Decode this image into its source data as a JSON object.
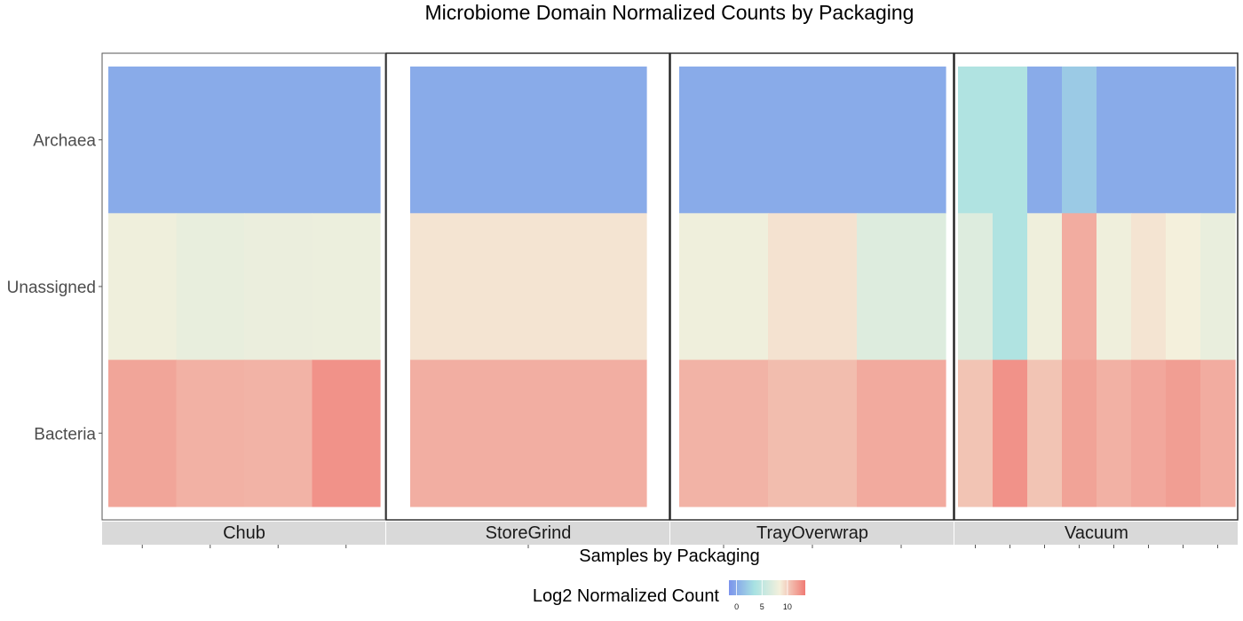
{
  "chart_data": {
    "type": "heatmap",
    "title": "Microbiome Domain Normalized Counts by Packaging",
    "xlabel": "Samples by Packaging",
    "ylabel": "",
    "rows": [
      "Archaea",
      "Unassigned",
      "Bacteria"
    ],
    "legend": {
      "title": "Log2 Normalized Count",
      "ticks": [
        "0",
        "5",
        "10"
      ],
      "range": [
        -1.5,
        13.5
      ],
      "colors": [
        "#7b93ec",
        "#a8e2e2",
        "#f4f0dc",
        "#f07b74"
      ]
    },
    "facets": [
      {
        "label": "Chub",
        "samples": 4,
        "values": [
          [
            0,
            0,
            0,
            0
          ],
          [
            8.2,
            7.7,
            7.9,
            8.0
          ],
          [
            11.7,
            11.2,
            11.1,
            12.5
          ]
        ]
      },
      {
        "label": "StoreGrind",
        "samples": 1,
        "values": [
          [
            0
          ],
          [
            9.0
          ],
          [
            11.3
          ]
        ]
      },
      {
        "label": "TrayOverwrap",
        "samples": 3,
        "values": [
          [
            0,
            0,
            0
          ],
          [
            8.2,
            9.1,
            7.0
          ],
          [
            11.1,
            10.7,
            11.5
          ]
        ]
      },
      {
        "label": "Vacuum",
        "samples": 8,
        "values": [
          [
            4.0,
            4.0,
            0,
            2.0,
            0,
            0,
            0,
            0
          ],
          [
            7.0,
            4.0,
            8.2,
            11.4,
            8.2,
            9.0,
            8.5,
            7.8
          ],
          [
            10.4,
            12.5,
            10.4,
            11.8,
            11.2,
            11.6,
            12.0,
            11.4
          ]
        ]
      }
    ]
  }
}
